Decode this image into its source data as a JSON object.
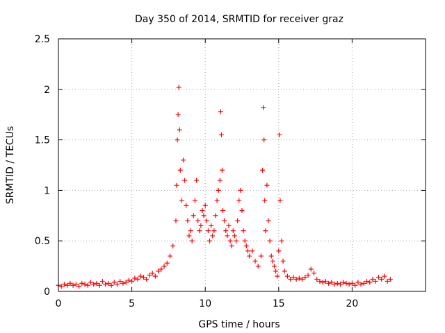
{
  "chart_data": {
    "type": "scatter",
    "title": "Day 350 of 2014, SRMTID for receiver graz",
    "xlabel": "GPS time / hours",
    "ylabel": "SRMTID / TECUs",
    "xlim": [
      0,
      25
    ],
    "ylim": [
      0,
      2.5
    ],
    "xticks": [
      0,
      5,
      10,
      15,
      20
    ],
    "xtick_labels": [
      "0",
      "5",
      "10",
      "15",
      "20"
    ],
    "yticks": [
      0,
      0.5,
      1,
      1.5,
      2,
      2.5
    ],
    "ytick_labels": [
      "0",
      "0.5",
      "1",
      "1.5",
      "2",
      "2.5"
    ],
    "grid": true,
    "marker": "plus",
    "color": "#ff0000",
    "series": [
      {
        "name": "graz",
        "points": [
          [
            0.0,
            0.06
          ],
          [
            0.2,
            0.05
          ],
          [
            0.4,
            0.07
          ],
          [
            0.6,
            0.06
          ],
          [
            0.8,
            0.08
          ],
          [
            1.0,
            0.06
          ],
          [
            1.2,
            0.07
          ],
          [
            1.4,
            0.05
          ],
          [
            1.6,
            0.08
          ],
          [
            1.8,
            0.07
          ],
          [
            2.0,
            0.06
          ],
          [
            2.2,
            0.09
          ],
          [
            2.4,
            0.07
          ],
          [
            2.6,
            0.08
          ],
          [
            2.8,
            0.06
          ],
          [
            3.0,
            0.1
          ],
          [
            3.2,
            0.07
          ],
          [
            3.4,
            0.08
          ],
          [
            3.6,
            0.06
          ],
          [
            3.8,
            0.09
          ],
          [
            4.0,
            0.07
          ],
          [
            4.2,
            0.1
          ],
          [
            4.4,
            0.08
          ],
          [
            4.6,
            0.09
          ],
          [
            4.8,
            0.11
          ],
          [
            5.0,
            0.1
          ],
          [
            5.2,
            0.13
          ],
          [
            5.4,
            0.12
          ],
          [
            5.6,
            0.15
          ],
          [
            5.8,
            0.14
          ],
          [
            6.0,
            0.12
          ],
          [
            6.2,
            0.16
          ],
          [
            6.4,
            0.18
          ],
          [
            6.6,
            0.15
          ],
          [
            6.8,
            0.2
          ],
          [
            7.0,
            0.22
          ],
          [
            7.2,
            0.25
          ],
          [
            7.4,
            0.28
          ],
          [
            7.6,
            0.35
          ],
          [
            7.8,
            0.45
          ],
          [
            8.0,
            0.7
          ],
          [
            8.05,
            1.05
          ],
          [
            8.1,
            1.5
          ],
          [
            8.15,
            1.75
          ],
          [
            8.2,
            2.02
          ],
          [
            8.25,
            1.6
          ],
          [
            8.3,
            1.2
          ],
          [
            8.4,
            0.9
          ],
          [
            8.5,
            1.3
          ],
          [
            8.6,
            1.1
          ],
          [
            8.7,
            0.85
          ],
          [
            8.8,
            0.7
          ],
          [
            8.9,
            0.55
          ],
          [
            9.0,
            0.6
          ],
          [
            9.1,
            0.5
          ],
          [
            9.2,
            0.75
          ],
          [
            9.3,
            0.9
          ],
          [
            9.4,
            1.1
          ],
          [
            9.5,
            0.7
          ],
          [
            9.6,
            0.6
          ],
          [
            9.7,
            0.65
          ],
          [
            9.8,
            0.8
          ],
          [
            9.9,
            0.75
          ],
          [
            10.0,
            0.85
          ],
          [
            10.1,
            0.7
          ],
          [
            10.2,
            0.6
          ],
          [
            10.3,
            0.5
          ],
          [
            10.4,
            0.65
          ],
          [
            10.5,
            0.55
          ],
          [
            10.6,
            0.6
          ],
          [
            10.7,
            0.75
          ],
          [
            10.8,
            0.9
          ],
          [
            10.9,
            1.0
          ],
          [
            11.0,
            1.1
          ],
          [
            11.05,
            1.78
          ],
          [
            11.1,
            1.55
          ],
          [
            11.15,
            1.2
          ],
          [
            11.2,
            0.8
          ],
          [
            11.3,
            0.7
          ],
          [
            11.4,
            0.6
          ],
          [
            11.5,
            0.55
          ],
          [
            11.6,
            0.65
          ],
          [
            11.7,
            0.5
          ],
          [
            11.8,
            0.45
          ],
          [
            11.9,
            0.6
          ],
          [
            12.0,
            0.55
          ],
          [
            12.1,
            0.5
          ],
          [
            12.2,
            0.7
          ],
          [
            12.3,
            0.9
          ],
          [
            12.4,
            1.0
          ],
          [
            12.5,
            0.8
          ],
          [
            12.6,
            0.6
          ],
          [
            12.7,
            0.5
          ],
          [
            12.8,
            0.45
          ],
          [
            12.9,
            0.4
          ],
          [
            13.0,
            0.35
          ],
          [
            13.2,
            0.4
          ],
          [
            13.4,
            0.3
          ],
          [
            13.6,
            0.25
          ],
          [
            13.8,
            0.35
          ],
          [
            13.9,
            1.2
          ],
          [
            13.95,
            1.82
          ],
          [
            14.0,
            1.5
          ],
          [
            14.05,
            0.9
          ],
          [
            14.1,
            0.6
          ],
          [
            14.2,
            1.05
          ],
          [
            14.3,
            0.7
          ],
          [
            14.4,
            0.5
          ],
          [
            14.5,
            0.35
          ],
          [
            14.6,
            0.3
          ],
          [
            14.7,
            0.25
          ],
          [
            14.8,
            0.2
          ],
          [
            14.9,
            0.15
          ],
          [
            15.0,
            0.4
          ],
          [
            15.05,
            1.55
          ],
          [
            15.1,
            0.9
          ],
          [
            15.2,
            0.5
          ],
          [
            15.3,
            0.3
          ],
          [
            15.4,
            0.2
          ],
          [
            15.6,
            0.15
          ],
          [
            15.8,
            0.12
          ],
          [
            16.0,
            0.14
          ],
          [
            16.2,
            0.12
          ],
          [
            16.4,
            0.13
          ],
          [
            16.6,
            0.12
          ],
          [
            16.8,
            0.14
          ],
          [
            17.0,
            0.16
          ],
          [
            17.2,
            0.22
          ],
          [
            17.4,
            0.18
          ],
          [
            17.6,
            0.12
          ],
          [
            17.8,
            0.1
          ],
          [
            18.0,
            0.09
          ],
          [
            18.2,
            0.1
          ],
          [
            18.4,
            0.08
          ],
          [
            18.6,
            0.09
          ],
          [
            18.8,
            0.07
          ],
          [
            19.0,
            0.08
          ],
          [
            19.2,
            0.07
          ],
          [
            19.4,
            0.09
          ],
          [
            19.6,
            0.08
          ],
          [
            19.8,
            0.07
          ],
          [
            20.0,
            0.08
          ],
          [
            20.2,
            0.06
          ],
          [
            20.4,
            0.09
          ],
          [
            20.6,
            0.07
          ],
          [
            20.8,
            0.08
          ],
          [
            21.0,
            0.1
          ],
          [
            21.2,
            0.09
          ],
          [
            21.4,
            0.12
          ],
          [
            21.6,
            0.1
          ],
          [
            21.8,
            0.14
          ],
          [
            22.0,
            0.12
          ],
          [
            22.2,
            0.15
          ],
          [
            22.4,
            0.1
          ],
          [
            22.6,
            0.12
          ]
        ]
      }
    ]
  }
}
